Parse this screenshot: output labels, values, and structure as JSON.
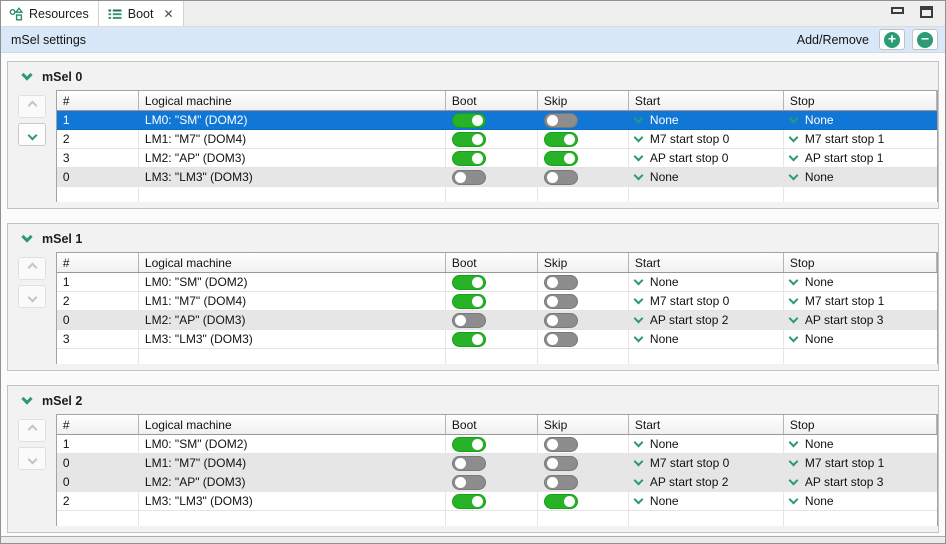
{
  "tabs": [
    {
      "label": "Resources",
      "active": false
    },
    {
      "label": "Boot",
      "active": true,
      "close_label": "✕"
    }
  ],
  "window_controls": {
    "minimize": "minimize-icon",
    "maximize": "maximize-icon"
  },
  "toolbar": {
    "title": "mSel settings",
    "add_remove_label": "Add/Remove",
    "add_glyph": "+",
    "remove_glyph": "−"
  },
  "table": {
    "columns": [
      "#",
      "Logical machine",
      "Boot",
      "Skip",
      "Start",
      "Stop"
    ]
  },
  "sections": [
    {
      "title": "mSel 0",
      "up_enabled": false,
      "down_enabled": true,
      "rows": [
        {
          "num": "1",
          "machine": "LM0: \"SM\" (DOM2)",
          "boot": true,
          "skip": false,
          "start": "None",
          "stop": "None",
          "selected": true,
          "dimmed": false
        },
        {
          "num": "2",
          "machine": "LM1: \"M7\" (DOM4)",
          "boot": true,
          "skip": true,
          "start": "M7 start stop 0",
          "stop": "M7 start stop 1",
          "selected": false,
          "dimmed": false
        },
        {
          "num": "3",
          "machine": "LM2: \"AP\" (DOM3)",
          "boot": true,
          "skip": true,
          "start": "AP start stop 0",
          "stop": "AP start stop 1",
          "selected": false,
          "dimmed": false
        },
        {
          "num": "0",
          "machine": "LM3: \"LM3\" (DOM3)",
          "boot": false,
          "skip": false,
          "start": "None",
          "stop": "None",
          "selected": false,
          "dimmed": true
        }
      ]
    },
    {
      "title": "mSel 1",
      "up_enabled": false,
      "down_enabled": false,
      "rows": [
        {
          "num": "1",
          "machine": "LM0: \"SM\" (DOM2)",
          "boot": true,
          "skip": false,
          "start": "None",
          "stop": "None",
          "selected": false,
          "dimmed": false
        },
        {
          "num": "2",
          "machine": "LM1: \"M7\" (DOM4)",
          "boot": true,
          "skip": false,
          "start": "M7 start stop 0",
          "stop": "M7 start stop 1",
          "selected": false,
          "dimmed": false
        },
        {
          "num": "0",
          "machine": "LM2: \"AP\" (DOM3)",
          "boot": false,
          "skip": false,
          "start": "AP start stop 2",
          "stop": "AP start stop 3",
          "selected": false,
          "dimmed": true
        },
        {
          "num": "3",
          "machine": "LM3: \"LM3\" (DOM3)",
          "boot": true,
          "skip": false,
          "start": "None",
          "stop": "None",
          "selected": false,
          "dimmed": false
        }
      ]
    },
    {
      "title": "mSel 2",
      "up_enabled": false,
      "down_enabled": false,
      "rows": [
        {
          "num": "1",
          "machine": "LM0: \"SM\" (DOM2)",
          "boot": true,
          "skip": false,
          "start": "None",
          "stop": "None",
          "selected": false,
          "dimmed": false
        },
        {
          "num": "0",
          "machine": "LM1: \"M7\" (DOM4)",
          "boot": false,
          "skip": false,
          "start": "M7 start stop 0",
          "stop": "M7 start stop 1",
          "selected": false,
          "dimmed": true
        },
        {
          "num": "0",
          "machine": "LM2: \"AP\" (DOM3)",
          "boot": false,
          "skip": false,
          "start": "AP start stop 2",
          "stop": "AP start stop 3",
          "selected": false,
          "dimmed": true
        },
        {
          "num": "2",
          "machine": "LM3: \"LM3\" (DOM3)",
          "boot": true,
          "skip": true,
          "start": "None",
          "stop": "None",
          "selected": false,
          "dimmed": false
        }
      ]
    }
  ],
  "colors": {
    "accent_teal": "#2a9b73",
    "toggle_on_green": "#28b228",
    "toggle_off_gray": "#8d8d8d",
    "selection_blue": "#1177d7",
    "toolbar_blue": "#d9e8f8"
  }
}
